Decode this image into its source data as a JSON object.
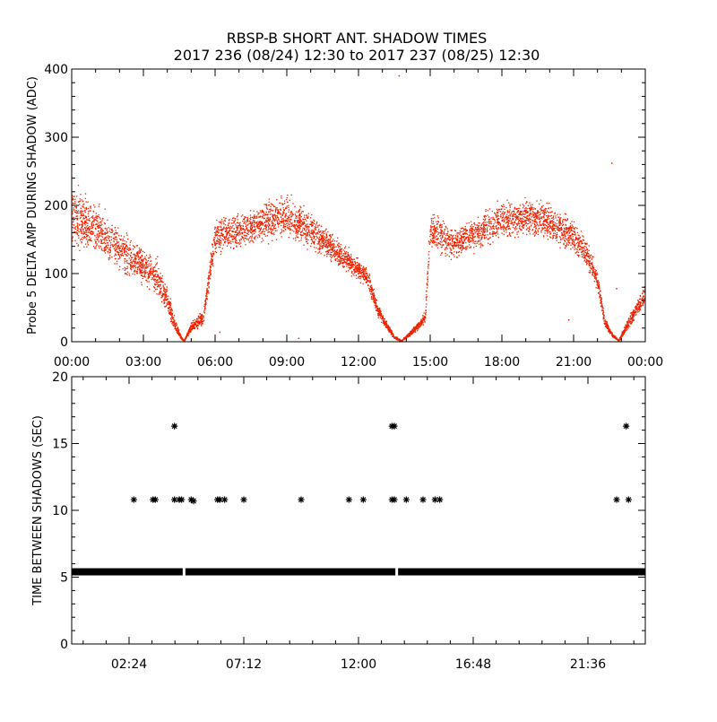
{
  "chart_data": [
    {
      "type": "scatter",
      "title": "RBSP-B SHORT ANT. SHADOW TIMES",
      "subtitle": "2017 236 (08/24) 12:30 to 2017 237 (08/25) 12:30",
      "xlabel": "",
      "ylabel": "Probe 5 DELTA AMP DURING SHADOW (ADC)",
      "xlim": [
        0,
        24
      ],
      "ylim": [
        0,
        400
      ],
      "xtick_values": [
        0,
        3,
        6,
        9,
        12,
        15,
        18,
        21,
        24
      ],
      "xticks": [
        "00:00",
        "03:00",
        "06:00",
        "09:00",
        "12:00",
        "15:00",
        "18:00",
        "21:00",
        "00:00"
      ],
      "yticks": [
        "0",
        "100",
        "200",
        "300",
        "400"
      ],
      "ytick_values": [
        0,
        100,
        200,
        300,
        400
      ],
      "color": "#ee2200",
      "series": [
        {
          "name": "delta amp upper envelope",
          "x": [
            0.0,
            1.0,
            2.0,
            3.0,
            3.5,
            4.0,
            4.3,
            4.6,
            4.7,
            5.0,
            5.5,
            6.0,
            7.0,
            8.0,
            9.0,
            10.0,
            11.0,
            12.0,
            12.4,
            12.8,
            13.2,
            13.5,
            13.8,
            14.2,
            14.6,
            14.8,
            15.0,
            16.0,
            17.0,
            18.0,
            19.0,
            20.0,
            21.0,
            21.5,
            22.0,
            22.3,
            22.6,
            22.9,
            23.2,
            24.0
          ],
          "y": [
            245,
            215,
            175,
            145,
            135,
            85,
            40,
            8,
            2,
            30,
            50,
            185,
            195,
            210,
            225,
            195,
            160,
            125,
            110,
            60,
            30,
            10,
            2,
            18,
            35,
            50,
            200,
            175,
            190,
            215,
            220,
            210,
            185,
            160,
            110,
            40,
            15,
            3,
            30,
            90
          ]
        },
        {
          "name": "delta amp lower envelope",
          "x": [
            0.0,
            1.0,
            2.0,
            3.0,
            3.5,
            4.0,
            4.3,
            4.6,
            4.7,
            5.0,
            5.5,
            6.0,
            7.0,
            8.0,
            9.0,
            10.0,
            11.0,
            12.0,
            12.4,
            12.8,
            13.2,
            13.5,
            13.8,
            14.2,
            14.6,
            14.8,
            15.0,
            16.0,
            17.0,
            18.0,
            19.0,
            20.0,
            21.0,
            21.5,
            22.0,
            22.3,
            22.6,
            22.9,
            23.2,
            24.0
          ],
          "y": [
            130,
            115,
            95,
            75,
            60,
            35,
            12,
            2,
            0,
            12,
            20,
            120,
            130,
            140,
            145,
            130,
            110,
            85,
            75,
            35,
            15,
            3,
            0,
            8,
            18,
            28,
            125,
            115,
            130,
            140,
            150,
            140,
            125,
            105,
            70,
            20,
            6,
            0,
            12,
            50
          ]
        }
      ],
      "outliers": [
        {
          "x": 13.7,
          "y": 390
        },
        {
          "x": 22.6,
          "y": 262
        },
        {
          "x": 22.8,
          "y": 78
        },
        {
          "x": 6.2,
          "y": 14
        },
        {
          "x": 9.5,
          "y": 5
        },
        {
          "x": 20.8,
          "y": 32
        }
      ]
    },
    {
      "type": "scatter",
      "title": "",
      "xlabel": "",
      "ylabel": "TIME BETWEEN SHADOWS (SEC)",
      "xlim": [
        0,
        24
      ],
      "ylim": [
        0,
        20
      ],
      "xtick_values": [
        2.4,
        7.2,
        12.0,
        16.8,
        21.6
      ],
      "xticks": [
        "02:24",
        "07:12",
        "12:00",
        "16:48",
        "21:36"
      ],
      "yticks": [
        "0",
        "5",
        "10",
        "15",
        "20"
      ],
      "ytick_values": [
        0,
        5,
        10,
        15,
        20
      ],
      "color": "#000000",
      "baseline": {
        "value": 5.4,
        "from": 0.0,
        "to": 24.0
      },
      "points": [
        {
          "x": 2.6,
          "y": 10.8
        },
        {
          "x": 3.4,
          "y": 10.8
        },
        {
          "x": 3.5,
          "y": 10.8
        },
        {
          "x": 4.3,
          "y": 16.3
        },
        {
          "x": 4.3,
          "y": 10.8
        },
        {
          "x": 4.5,
          "y": 10.8
        },
        {
          "x": 4.6,
          "y": 10.8
        },
        {
          "x": 5.0,
          "y": 10.8
        },
        {
          "x": 5.1,
          "y": 10.7
        },
        {
          "x": 6.1,
          "y": 10.8
        },
        {
          "x": 6.2,
          "y": 10.8
        },
        {
          "x": 6.4,
          "y": 10.8
        },
        {
          "x": 7.2,
          "y": 10.8
        },
        {
          "x": 9.6,
          "y": 10.8
        },
        {
          "x": 11.6,
          "y": 10.8
        },
        {
          "x": 12.2,
          "y": 10.8
        },
        {
          "x": 13.4,
          "y": 16.3
        },
        {
          "x": 13.5,
          "y": 16.3
        },
        {
          "x": 13.4,
          "y": 10.8
        },
        {
          "x": 13.5,
          "y": 10.8
        },
        {
          "x": 14.0,
          "y": 10.8
        },
        {
          "x": 14.7,
          "y": 10.8
        },
        {
          "x": 15.2,
          "y": 10.8
        },
        {
          "x": 15.4,
          "y": 10.8
        },
        {
          "x": 22.8,
          "y": 10.8
        },
        {
          "x": 23.2,
          "y": 16.3
        },
        {
          "x": 23.3,
          "y": 10.8
        }
      ]
    }
  ]
}
